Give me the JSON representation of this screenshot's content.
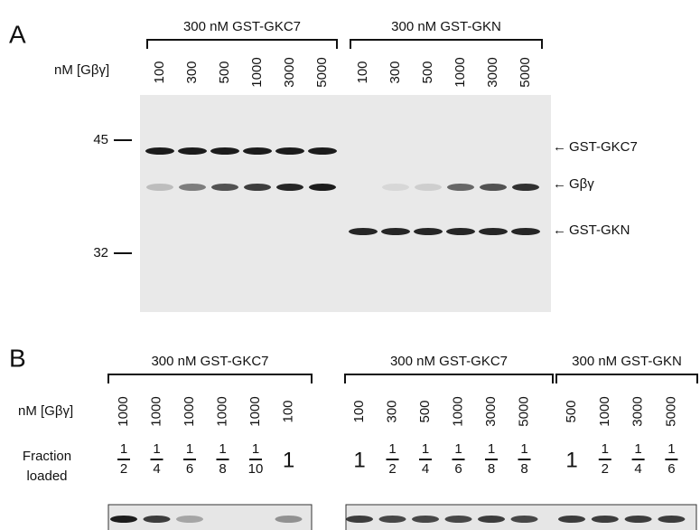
{
  "panel_a": {
    "label": "A",
    "lane_axis_label": "nM [Gβγ]",
    "groups": [
      {
        "title": "300 nM GST-GKC7",
        "lanes": [
          "100",
          "300",
          "500",
          "1000",
          "3000",
          "5000"
        ]
      },
      {
        "title": "300 nM GST-GKN",
        "lanes": [
          "100",
          "300",
          "500",
          "1000",
          "3000",
          "5000"
        ]
      }
    ],
    "markers": [
      "45",
      "32"
    ],
    "bands": [
      "GST-GKC7",
      "Gβγ",
      "GST-GKN"
    ]
  },
  "panel_b": {
    "label": "B",
    "lane_axis_label": "nM [Gβγ]",
    "fraction_label": [
      "Fraction",
      "loaded"
    ],
    "groups": [
      {
        "title": "300 nM GST-GKC7",
        "lanes": [
          {
            "conc": "1000",
            "num": "1",
            "den": "2"
          },
          {
            "conc": "1000",
            "num": "1",
            "den": "4"
          },
          {
            "conc": "1000",
            "num": "1",
            "den": "6"
          },
          {
            "conc": "1000",
            "num": "1",
            "den": "8"
          },
          {
            "conc": "1000",
            "num": "1",
            "den": "10"
          },
          {
            "conc": "100",
            "num": "1"
          }
        ]
      },
      {
        "title": "300 nM GST-GKC7",
        "lanes": [
          {
            "conc": "100",
            "num": "1"
          },
          {
            "conc": "300",
            "num": "1",
            "den": "2"
          },
          {
            "conc": "500",
            "num": "1",
            "den": "4"
          },
          {
            "conc": "1000",
            "num": "1",
            "den": "6"
          },
          {
            "conc": "3000",
            "num": "1",
            "den": "8"
          },
          {
            "conc": "5000",
            "num": "1",
            "den": "8"
          }
        ]
      },
      {
        "title": "300 nM GST-GKN",
        "lanes": [
          {
            "conc": "500",
            "num": "1"
          },
          {
            "conc": "1000",
            "num": "1",
            "den": "2"
          },
          {
            "conc": "3000",
            "num": "1",
            "den": "4"
          },
          {
            "conc": "5000",
            "num": "1",
            "den": "6"
          }
        ]
      }
    ]
  }
}
